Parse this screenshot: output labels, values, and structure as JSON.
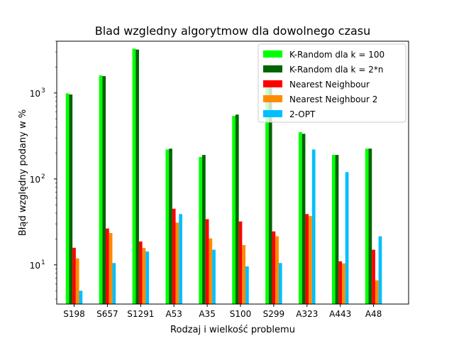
{
  "chart_data": {
    "type": "bar",
    "title": "Blad wzgledny algorytmow dla dowolnego czasu",
    "xlabel": "Rodzaj i wielkość problemu",
    "ylabel": "Błąd względny podany w %",
    "yscale": "log",
    "ylim": [
      3.5,
      4000
    ],
    "y_tick_labels": [
      "10",
      "10",
      "10"
    ],
    "y_tick_exponents": [
      "1",
      "2",
      "3"
    ],
    "y_tick_values": [
      10,
      100,
      1000
    ],
    "categories": [
      "S198",
      "S657",
      "S1291",
      "A53",
      "A35",
      "S100",
      "S299",
      "A323",
      "A443",
      "A48"
    ],
    "legend_position": "top-right",
    "grid": false,
    "series": [
      {
        "name": "K-Random dla k = 100",
        "color": "#00ff00",
        "values": [
          990,
          1600,
          3280,
          220,
          180,
          540,
          1310,
          350,
          190,
          225
        ]
      },
      {
        "name": "K-Random dla k = 2*n",
        "color": "#006400",
        "values": [
          960,
          1570,
          3200,
          225,
          190,
          560,
          1290,
          335,
          190,
          225
        ]
      },
      {
        "name": "Nearest Neighbour",
        "color": "#ff0000",
        "values": [
          15.8,
          26.5,
          18.7,
          45,
          34,
          32,
          24.5,
          39,
          11.0,
          15.0
        ]
      },
      {
        "name": "Nearest Neighbour 2",
        "color": "#ff8c00",
        "values": [
          11.9,
          23.5,
          15.7,
          31,
          20.3,
          17.0,
          21.5,
          37,
          10.4,
          6.6
        ]
      },
      {
        "name": "2-OPT",
        "color": "#00bfff",
        "values": [
          5.0,
          10.5,
          14.3,
          39,
          15.0,
          9.6,
          10.5,
          220,
          120,
          21.5
        ]
      }
    ]
  }
}
